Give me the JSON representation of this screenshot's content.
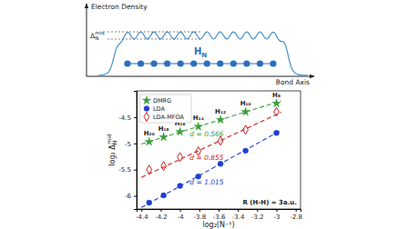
{
  "schematic": {
    "y_label": "Electron Density",
    "x_label": "Bond Axis",
    "chain_label": {
      "text": "H",
      "sub": "N"
    },
    "delta_label": {
      "text": "Δ",
      "sub": "N",
      "sup": "mid"
    },
    "atoms": 12
  },
  "chart_data": {
    "type": "scatter",
    "x_label": "log₂(N⁻¹)",
    "y_label": {
      "text": "log₂ Δ",
      "sub": "N",
      "sup": "mid"
    },
    "x": [
      -3,
      -3.32,
      -3.58,
      -3.81,
      -4,
      -4.17,
      -4.32
    ],
    "point_labels": [
      "H₈",
      "H₁₀",
      "H₁₂",
      "H₁₄",
      "H₁₆",
      "H₁₈",
      "H₂₀"
    ],
    "series": [
      {
        "name": "DMRG",
        "color": "#3a9e3a",
        "marker": "star",
        "line_style": "dashed",
        "values": [
          -4.24,
          -4.4,
          -4.55,
          -4.68,
          -4.78,
          -4.88,
          -4.97
        ],
        "fit": {
          "x": [
            -4.4,
            -2.95
          ],
          "y": [
            -5.012,
            -4.192
          ]
        },
        "fit_label": "d = 0.566"
      },
      {
        "name": "LDA",
        "color": "#1f3fd0",
        "marker": "circle",
        "line_style": "dashed",
        "values": [
          -4.8,
          -5.14,
          -5.39,
          -5.63,
          -5.81,
          -5.99,
          -6.13
        ],
        "fit": {
          "x": [
            -4.4,
            -2.95
          ],
          "y": [
            -6.221,
            -4.749
          ]
        },
        "fit_label": "d = 1.015"
      },
      {
        "name": "LDA-MFOA",
        "color": "#cc2020",
        "marker": "open-diamond",
        "line_style": "dashed",
        "values": [
          -4.4,
          -4.74,
          -4.95,
          -5.15,
          -5.26,
          -5.43,
          -5.5
        ],
        "fit": {
          "x": [
            -4.4,
            -2.95
          ],
          "y": [
            -5.647,
            -4.407
          ]
        },
        "fit_label": "d = 0.855"
      }
    ],
    "xlim": [
      -4.45,
      -2.75
    ],
    "xticks": [
      -4.4,
      -4.2,
      -4,
      -3.8,
      -3.6,
      -3.4,
      -3.2,
      -3,
      -2.8
    ],
    "ylim": [
      -6.25,
      -4.0
    ],
    "yticks": [
      -6,
      -5.5,
      -5,
      -4.5
    ],
    "legend": "top-left",
    "grid": false,
    "annotations": [
      "R (H-H) = 3a.u."
    ]
  }
}
